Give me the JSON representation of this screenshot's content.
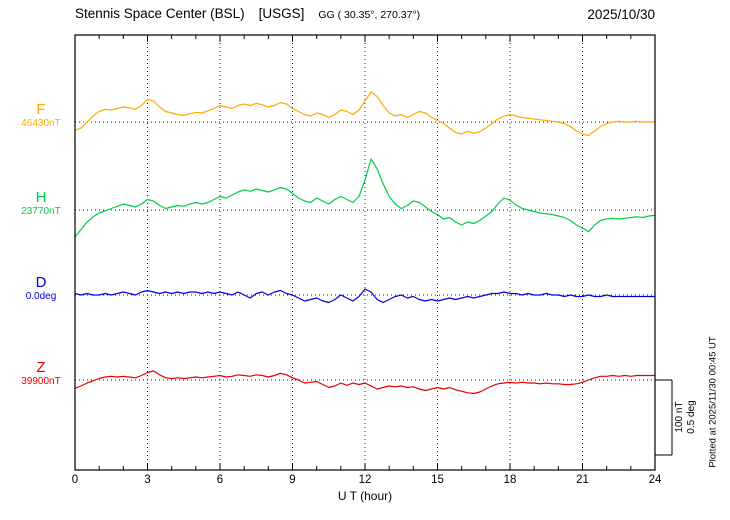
{
  "header": {
    "station_title": "Stennis Space Center (BSL)",
    "agency": "[USGS]",
    "gg_coords": "GG ( 30.35°, 270.37°)",
    "date": "2025/10/30"
  },
  "axes": {
    "x_label": "U T (hour)"
  },
  "right_side": {
    "scale_label_line1": "100 nT",
    "scale_label_line2": "0.5 deg",
    "plotted_at": "Plotted at 2025/11/30 00:45 UT"
  },
  "traces": [
    {
      "letter": "F",
      "value_label": "46430nT",
      "color": "#FFAA00"
    },
    {
      "letter": "H",
      "value_label": "23770nT",
      "color": "#00CC44"
    },
    {
      "letter": "D",
      "value_label": "0.0deg",
      "color": "#0000DD"
    },
    {
      "letter": "Z",
      "value_label": "39900nT",
      "color": "#E60000"
    }
  ],
  "chart_data": {
    "type": "line",
    "title": "Stennis Space Center (BSL) [USGS] GG ( 30.35, 270.37 ) magnetogram 2025/10/30",
    "xlabel": "U T (hour)",
    "x_range": [
      0,
      24
    ],
    "x_ticks": [
      0,
      3,
      6,
      9,
      12,
      15,
      18,
      21,
      24
    ],
    "x_step_hours": 0.25,
    "grid": "dotted vertical lines every 3 h; dotted horizontal baseline per trace",
    "legend_position": "left of axis",
    "scale_bar": {
      "nT": 100,
      "deg": 0.5
    },
    "series": [
      {
        "name": "F",
        "baseline_value": 46430,
        "unit": "nT",
        "color": "#FFAA00",
        "scale_bar_value": 100,
        "values": [
          -11,
          -8,
          0,
          8,
          14,
          17,
          16,
          18,
          20,
          19,
          17,
          22,
          30,
          28,
          20,
          14,
          12,
          10,
          9,
          11,
          13,
          12,
          15,
          18,
          22,
          20,
          18,
          22,
          24,
          22,
          25,
          23,
          20,
          22,
          26,
          24,
          18,
          14,
          10,
          8,
          12,
          10,
          6,
          10,
          16,
          14,
          10,
          16,
          28,
          40,
          34,
          22,
          12,
          8,
          10,
          6,
          10,
          14,
          12,
          6,
          2,
          -2,
          -8,
          -14,
          -16,
          -12,
          -15,
          -13,
          -8,
          -2,
          4,
          8,
          10,
          8,
          6,
          5,
          4,
          3,
          2,
          1,
          0,
          -2,
          -6,
          -12,
          -16,
          -18,
          -12,
          -6,
          -2,
          0,
          1,
          0,
          0,
          1,
          0,
          0,
          0
        ]
      },
      {
        "name": "H",
        "baseline_value": 23770,
        "unit": "nT",
        "color": "#00CC44",
        "scale_bar_value": 100,
        "values": [
          -36,
          -26,
          -16,
          -9,
          -4,
          -1,
          2,
          5,
          8,
          6,
          4,
          8,
          14,
          12,
          6,
          2,
          4,
          6,
          5,
          8,
          10,
          8,
          10,
          14,
          18,
          16,
          20,
          24,
          27,
          25,
          28,
          26,
          24,
          27,
          30,
          28,
          22,
          16,
          12,
          10,
          16,
          12,
          8,
          14,
          18,
          14,
          10,
          18,
          40,
          68,
          55,
          35,
          18,
          8,
          2,
          6,
          12,
          10,
          4,
          -2,
          -6,
          -12,
          -10,
          -16,
          -20,
          -16,
          -18,
          -14,
          -8,
          -2,
          8,
          16,
          13,
          7,
          2,
          0,
          -2,
          -4,
          -5,
          -6,
          -8,
          -10,
          -14,
          -20,
          -24,
          -29,
          -20,
          -14,
          -12,
          -11,
          -12,
          -11,
          -10,
          -9,
          -10,
          -8,
          -7
        ]
      },
      {
        "name": "D",
        "baseline_value": 0.0,
        "unit": "deg",
        "color": "#0000DD",
        "scale_bar_value": 0.5,
        "values": [
          0.01,
          0,
          0.01,
          0,
          0,
          0.01,
          0,
          0.01,
          0.02,
          0.01,
          0,
          0.02,
          0.03,
          0.02,
          0.01,
          0.02,
          0.01,
          0.02,
          0.01,
          0.02,
          0.02,
          0.01,
          0.02,
          0.01,
          0.02,
          0.01,
          0,
          0.02,
          0,
          -0.02,
          0.01,
          0.02,
          0,
          0.02,
          0.03,
          0.01,
          0,
          -0.02,
          -0.04,
          -0.03,
          -0.02,
          -0.04,
          -0.05,
          -0.03,
          0,
          -0.02,
          -0.04,
          -0.01,
          0.04,
          0.02,
          -0.03,
          -0.05,
          -0.03,
          -0.01,
          0,
          -0.02,
          -0.01,
          -0.03,
          -0.04,
          -0.03,
          -0.04,
          -0.03,
          -0.02,
          -0.03,
          -0.02,
          -0.01,
          -0.02,
          -0.01,
          0,
          0.01,
          0.01,
          0.02,
          0.01,
          0.01,
          0,
          0.01,
          0,
          0,
          0.01,
          0,
          0,
          -0.01,
          0,
          -0.01,
          -0.01,
          0,
          -0.01,
          -0.01,
          0,
          -0.01,
          -0.01,
          -0.01,
          -0.01,
          -0.01,
          -0.01,
          -0.01,
          -0.01
        ]
      },
      {
        "name": "Z",
        "baseline_value": 39900,
        "unit": "nT",
        "color": "#E60000",
        "scale_bar_value": 100,
        "values": [
          -11,
          -8,
          -4,
          -1,
          2,
          4,
          5,
          4,
          5,
          4,
          3,
          6,
          10,
          12,
          7,
          3,
          2,
          3,
          2,
          3,
          4,
          3,
          4,
          5,
          6,
          4,
          5,
          7,
          6,
          5,
          7,
          6,
          4,
          6,
          9,
          7,
          3,
          0,
          -4,
          -3,
          -2,
          -6,
          -10,
          -8,
          -4,
          -7,
          -4,
          -6,
          -4,
          -8,
          -12,
          -10,
          -8,
          -9,
          -8,
          -10,
          -9,
          -12,
          -14,
          -12,
          -10,
          -12,
          -10,
          -13,
          -15,
          -17,
          -18,
          -16,
          -12,
          -8,
          -5,
          -4,
          -3,
          -4,
          -3,
          -4,
          -4,
          -5,
          -4,
          -5,
          -5,
          -6,
          -6,
          -5,
          -3,
          0,
          3,
          5,
          5,
          6,
          5,
          6,
          5,
          6,
          6,
          6,
          6
        ]
      }
    ]
  }
}
